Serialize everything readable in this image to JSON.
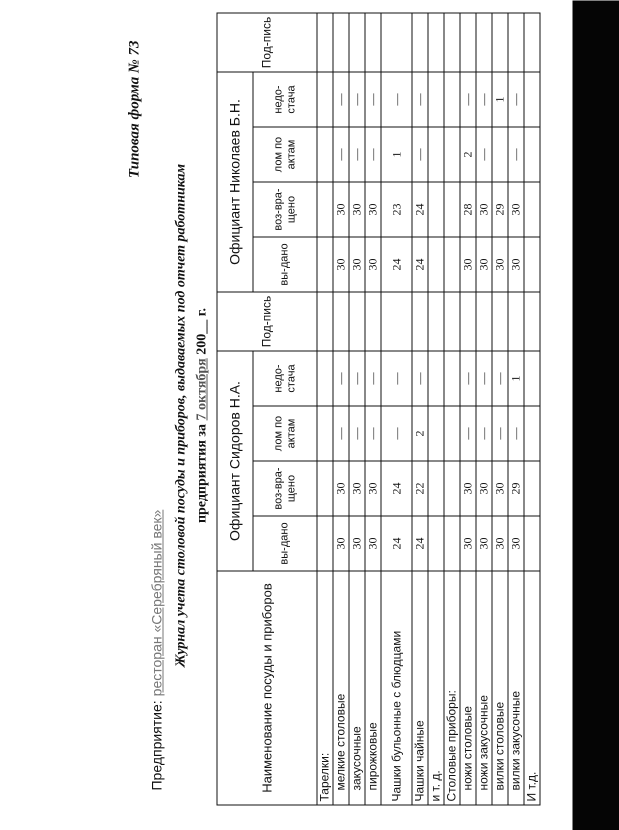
{
  "form_number": "Типовая форма № 73",
  "enterprise_label": "Предприятие:",
  "enterprise_value": "ресторан «Серебряный век»",
  "title_line1": "Журнал учета столовой посуды и приборов, выдаваемых под отчет работникам",
  "title_line2_prefix": "предприятия за",
  "title_date": "7 октября",
  "title_line2_suffix": "200__ г.",
  "table": {
    "name_header": "Наименование посуды и приборов",
    "groups": [
      "Официант Сидоров Н.А.",
      "Официант Николаев Б.Н."
    ],
    "sub_headers": [
      "вы-дано",
      "воз-вра-щено",
      "лом по актам",
      "недо-стача"
    ],
    "signature_header": "Под-пись",
    "rows": [
      {
        "name": "Тарелки:",
        "indent": false,
        "a": [
          "",
          "",
          "",
          ""
        ],
        "b": [
          "",
          "",
          "",
          ""
        ]
      },
      {
        "name": "мелкие столовые",
        "indent": true,
        "a": [
          "30",
          "30",
          "—",
          "—"
        ],
        "b": [
          "30",
          "30",
          "—",
          "—"
        ]
      },
      {
        "name": "закусочные",
        "indent": true,
        "a": [
          "30",
          "30",
          "—",
          "—"
        ],
        "b": [
          "30",
          "30",
          "—",
          "—"
        ]
      },
      {
        "name": "пирожковые",
        "indent": true,
        "a": [
          "30",
          "30",
          "—",
          "—"
        ],
        "b": [
          "30",
          "30",
          "—",
          "—"
        ]
      },
      {
        "name": "Чашки бульонные с блюдцами",
        "indent": false,
        "a": [
          "24",
          "24",
          "—",
          "—"
        ],
        "b": [
          "24",
          "23",
          "1",
          "—"
        ]
      },
      {
        "name": "Чашки чайные",
        "indent": false,
        "a": [
          "24",
          "22",
          "2",
          "—"
        ],
        "b": [
          "24",
          "24",
          "—",
          "—"
        ]
      },
      {
        "name": "и т. д.",
        "indent": false,
        "a": [
          "",
          "",
          "",
          ""
        ],
        "b": [
          "",
          "",
          "",
          ""
        ]
      },
      {
        "name": "Столовые приборы:",
        "indent": false,
        "a": [
          "",
          "",
          "",
          ""
        ],
        "b": [
          "",
          "",
          "",
          ""
        ]
      },
      {
        "name": "ножи столовые",
        "indent": true,
        "a": [
          "30",
          "30",
          "—",
          "—"
        ],
        "b": [
          "30",
          "28",
          "2",
          "—"
        ]
      },
      {
        "name": "ножи закусочные",
        "indent": true,
        "a": [
          "30",
          "30",
          "—",
          "—"
        ],
        "b": [
          "30",
          "30",
          "—",
          "—"
        ]
      },
      {
        "name": "вилки столовые",
        "indent": true,
        "a": [
          "30",
          "30",
          "—",
          "—"
        ],
        "b": [
          "30",
          "29",
          "",
          "1"
        ]
      },
      {
        "name": "вилки закусочные",
        "indent": true,
        "a": [
          "30",
          "29",
          "—",
          "1"
        ],
        "b": [
          "30",
          "30",
          "—",
          "—"
        ]
      },
      {
        "name": "И т.д.",
        "indent": false,
        "a": [
          "",
          "",
          "",
          ""
        ],
        "b": [
          "",
          "",
          "",
          ""
        ]
      }
    ]
  }
}
